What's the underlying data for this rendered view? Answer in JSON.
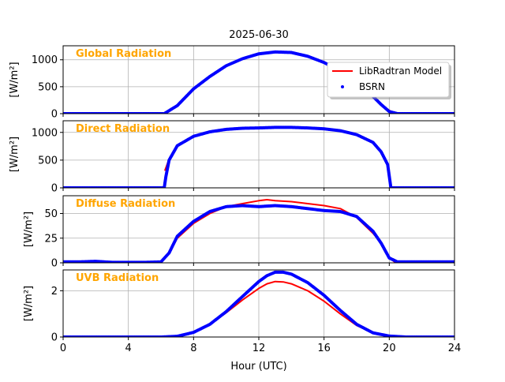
{
  "chart_data": {
    "type": "line",
    "title": "2025-06-30",
    "xlabel": "Hour (UTC)",
    "xlim": [
      0,
      24
    ],
    "xticks": [
      0,
      4,
      8,
      12,
      16,
      20,
      24
    ],
    "grid": true,
    "legend": {
      "placement": "top-right",
      "entries": [
        {
          "label": "LibRadtran Model",
          "color": "#ff0000",
          "style": "line"
        },
        {
          "label": "BSRN",
          "color": "#0000ff",
          "style": "marker"
        }
      ]
    },
    "label_color": "#ffa500",
    "panels": [
      {
        "label": "Global Radiation",
        "ylabel": "[W/m²]",
        "ylim": [
          0,
          1260
        ],
        "yticks": [
          0,
          500,
          1000
        ],
        "series": [
          {
            "name": "LibRadtran Model",
            "color": "#ff0000",
            "x": [
              6.3,
              7,
              8,
              9,
              10,
              11,
              12,
              13,
              14,
              15,
              16,
              17,
              18,
              19,
              19.5,
              20,
              20.4
            ],
            "y": [
              0,
              150,
              450,
              680,
              880,
              1020,
              1110,
              1150,
              1140,
              1070,
              950,
              790,
              580,
              320,
              170,
              60,
              0
            ]
          },
          {
            "name": "BSRN",
            "color": "#0000ff",
            "x": [
              0,
              6.2,
              7,
              8,
              9,
              10,
              11,
              12,
              13,
              14,
              15,
              16,
              17,
              18,
              19,
              19.5,
              20,
              20.5,
              24
            ],
            "y": [
              0,
              0,
              150,
              460,
              690,
              890,
              1020,
              1110,
              1145,
              1135,
              1065,
              950,
              790,
              580,
              320,
              170,
              40,
              0,
              0
            ]
          }
        ]
      },
      {
        "label": "Direct Radiation",
        "ylabel": "[W/m²]",
        "ylim": [
          0,
          1210
        ],
        "yticks": [
          0,
          500,
          1000
        ],
        "series": [
          {
            "name": "LibRadtran Model",
            "color": "#ff0000",
            "x": [
              6.25,
              6.5,
              7,
              8,
              9,
              10,
              11,
              12,
              13,
              14,
              15,
              16,
              17,
              18,
              19,
              19.5,
              19.9,
              20.1
            ],
            "y": [
              320,
              520,
              760,
              930,
              1010,
              1050,
              1070,
              1080,
              1085,
              1085,
              1080,
              1065,
              1030,
              960,
              820,
              660,
              420,
              0
            ]
          },
          {
            "name": "BSRN",
            "color": "#0000ff",
            "x": [
              0,
              6.2,
              6.3,
              6.5,
              7,
              8,
              9,
              10,
              11,
              12,
              13,
              14,
              15,
              16,
              17,
              18,
              19,
              19.5,
              19.9,
              20.1,
              24
            ],
            "y": [
              0,
              0,
              200,
              500,
              760,
              930,
              1010,
              1055,
              1075,
              1080,
              1090,
              1090,
              1080,
              1065,
              1030,
              960,
              820,
              650,
              420,
              0,
              0
            ]
          }
        ]
      },
      {
        "label": "Diffuse Radiation",
        "ylabel": "[W/m²]",
        "ylim": [
          0,
          68
        ],
        "yticks": [
          0,
          25,
          50
        ],
        "series": [
          {
            "name": "LibRadtran Model",
            "color": "#ff0000",
            "x": [
              6,
              6.5,
              7,
              8,
              9,
              10,
              11,
              12,
              12.5,
              13,
              14,
              15,
              16,
              17,
              18,
              19,
              19.5,
              20,
              20.4
            ],
            "y": [
              0,
              10,
              25,
              40,
              50,
              57,
              60,
              63,
              64,
              63,
              62,
              60,
              58,
              55,
              46,
              30,
              20,
              5,
              0
            ]
          },
          {
            "name": "BSRN",
            "color": "#0000ff",
            "x": [
              0,
              1,
              2,
              3,
              4,
              5,
              6,
              6.5,
              7,
              8,
              9,
              10,
              11,
              12,
              13,
              14,
              15,
              16,
              17,
              18,
              19,
              19.5,
              20,
              20.5,
              21,
              22,
              23,
              24
            ],
            "y": [
              1,
              1,
              1.5,
              0.5,
              0.5,
              0.5,
              1,
              10,
              27,
              42,
              52,
              57,
              58,
              57,
              58,
              57,
              55,
              53,
              52,
              47,
              32,
              20,
              5,
              1,
              1,
              1,
              1,
              1
            ]
          }
        ]
      },
      {
        "label": "UVB Radiation",
        "ylabel": "[W/m²]",
        "ylim": [
          0,
          2.9
        ],
        "yticks": [
          0,
          2
        ],
        "series": [
          {
            "name": "LibRadtran Model",
            "color": "#ff0000",
            "x": [
              0,
              6,
              7,
              8,
              9,
              10,
              11,
              12,
              12.5,
              13,
              13.5,
              14,
              15,
              16,
              17,
              18,
              19,
              20,
              21,
              24
            ],
            "y": [
              0,
              0,
              0.03,
              0.2,
              0.55,
              1.05,
              1.6,
              2.1,
              2.3,
              2.4,
              2.38,
              2.3,
              2.0,
              1.55,
              1.0,
              0.5,
              0.18,
              0.04,
              0,
              0
            ]
          },
          {
            "name": "BSRN",
            "color": "#0000ff",
            "x": [
              0,
              6,
              7,
              8,
              9,
              10,
              11,
              12,
              12.5,
              13,
              13.5,
              14,
              15,
              16,
              17,
              18,
              19,
              20,
              21,
              24
            ],
            "y": [
              0,
              0,
              0.03,
              0.2,
              0.55,
              1.1,
              1.75,
              2.4,
              2.65,
              2.8,
              2.8,
              2.72,
              2.35,
              1.8,
              1.15,
              0.55,
              0.18,
              0.04,
              0,
              0
            ]
          }
        ]
      }
    ]
  }
}
